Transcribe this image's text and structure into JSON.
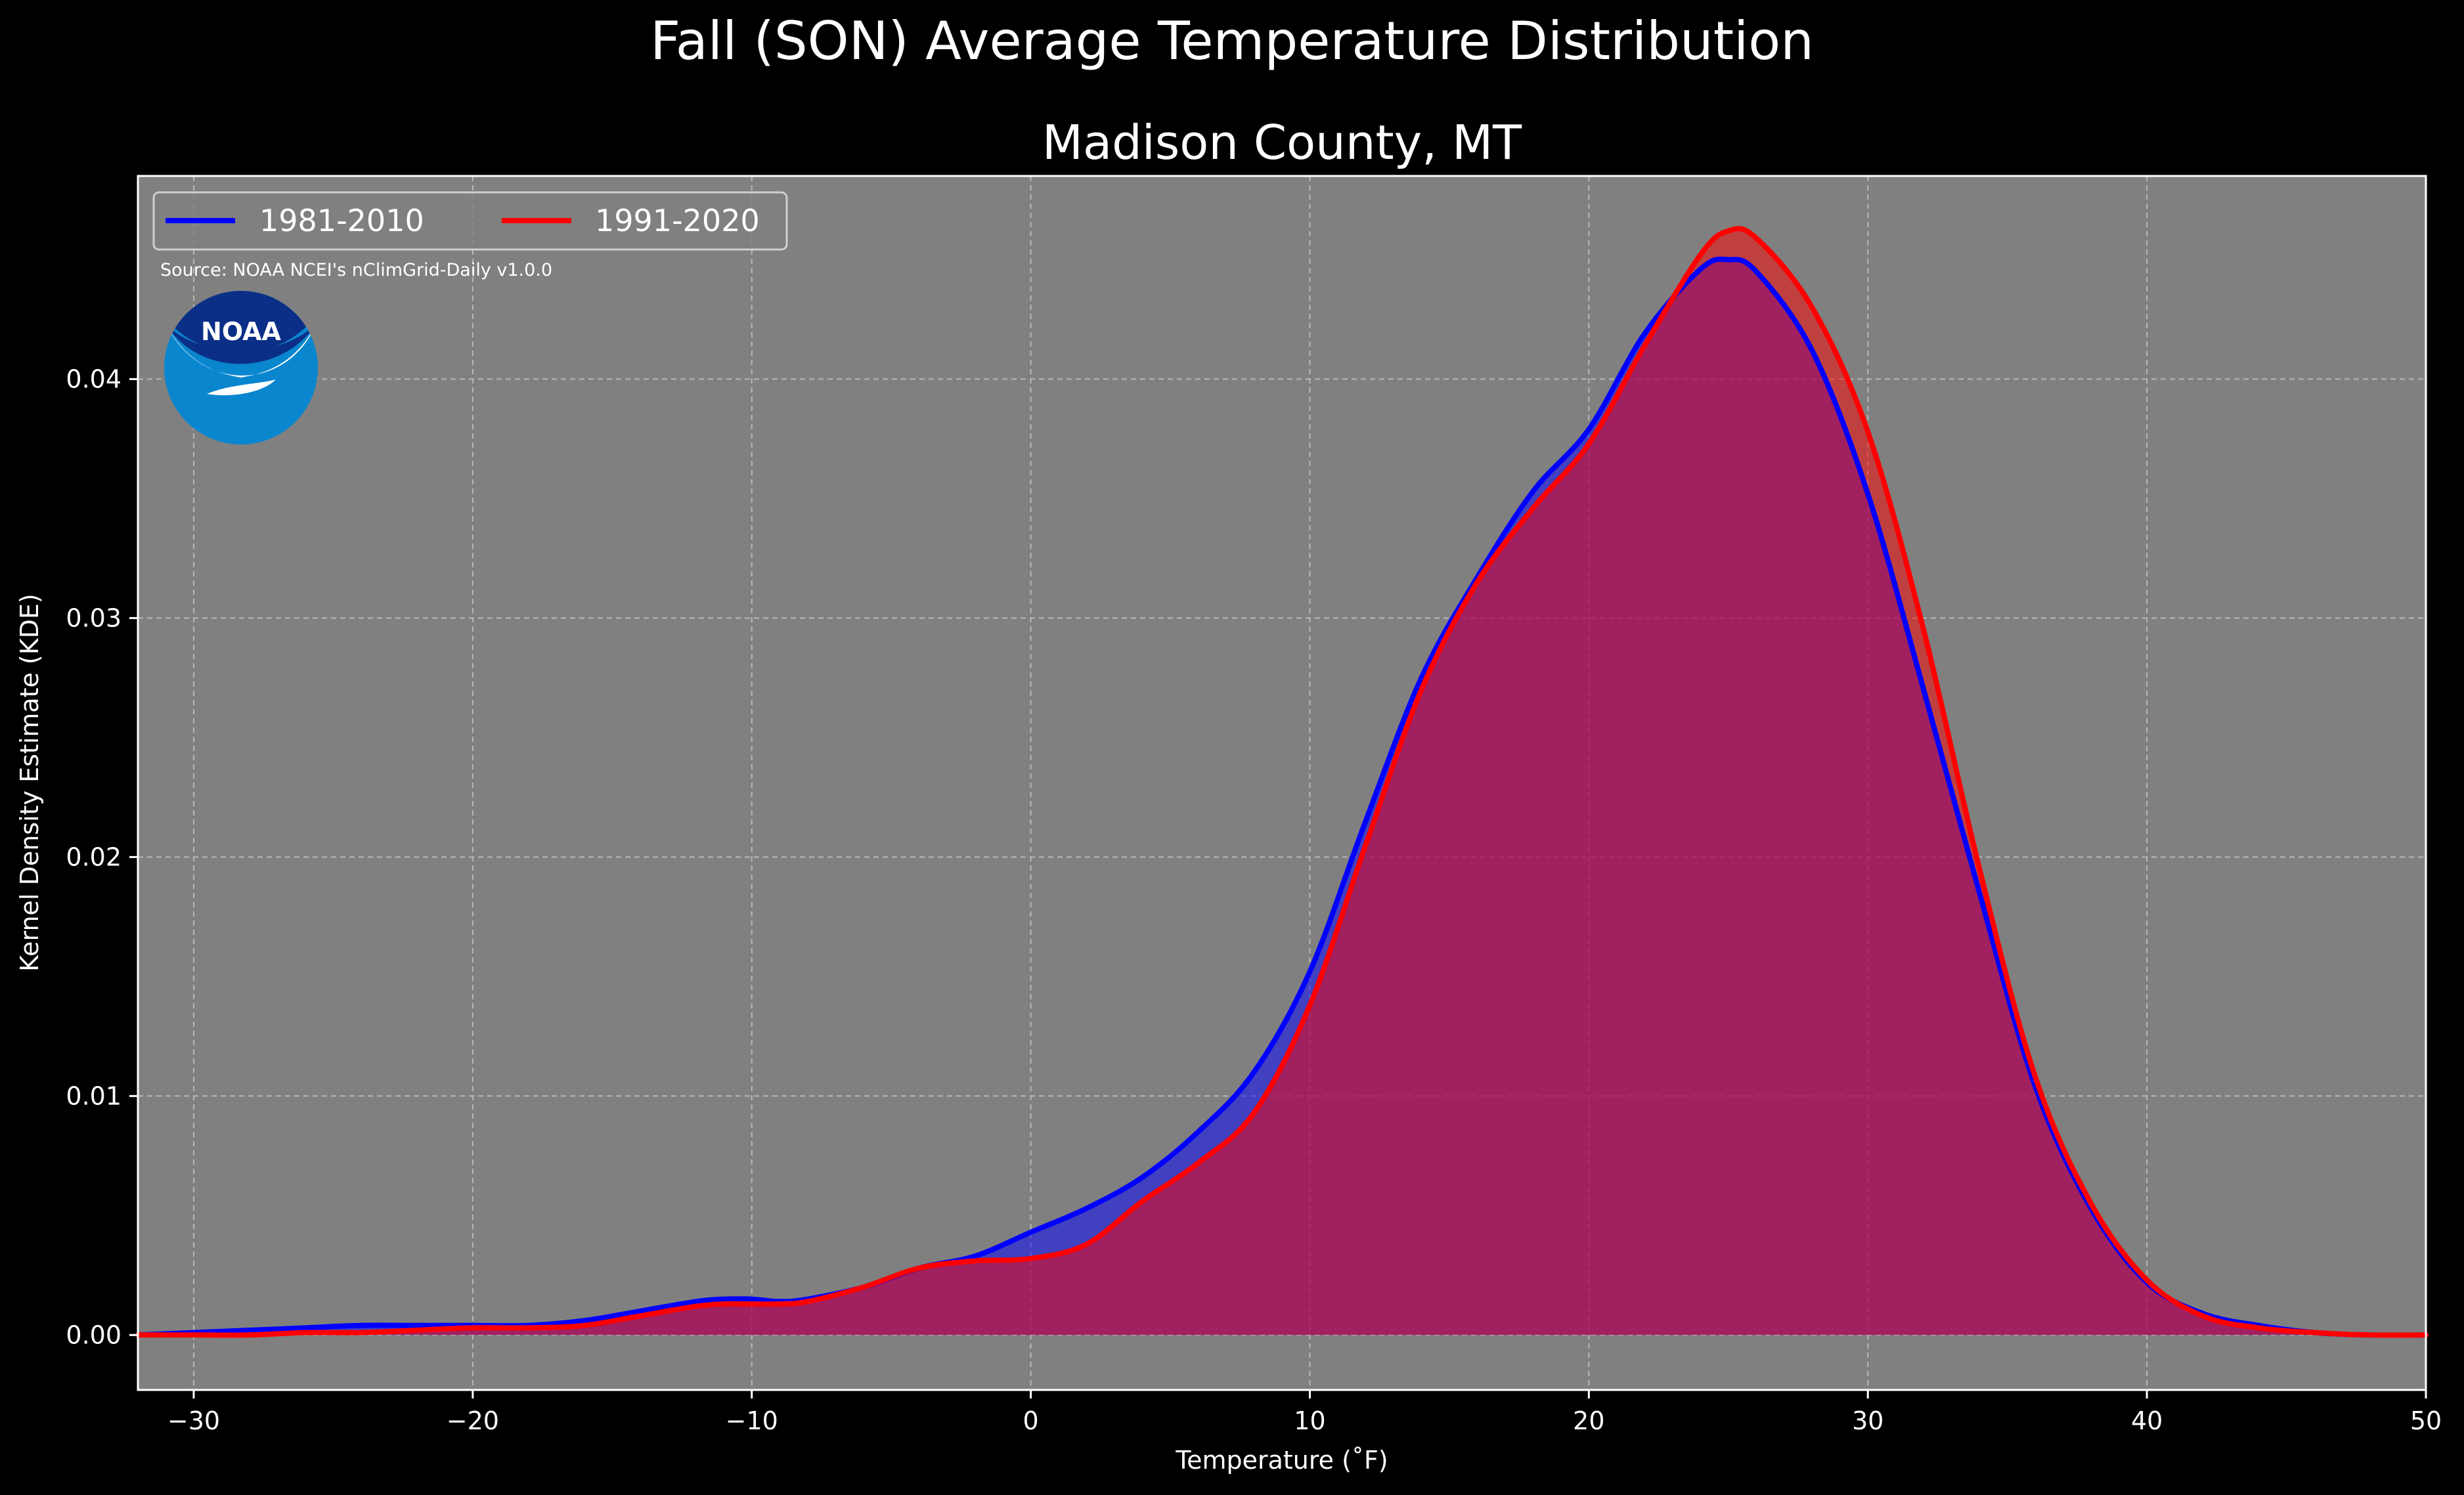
{
  "chart_data": {
    "type": "area",
    "suptitle": "Fall (SON) Average Temperature Distribution",
    "title": "Madison County, MT",
    "xlabel": "Temperature ($^\\circ$F)",
    "xlabel_display": "Temperature (˚F)",
    "ylabel": "Kernel Density Estimate (KDE)",
    "xlim": [
      -32,
      50
    ],
    "ylim": [
      -0.0023,
      0.0485
    ],
    "xticks": [
      -30,
      -20,
      -10,
      0,
      10,
      20,
      30,
      40,
      50
    ],
    "xtick_labels": [
      "−30",
      "−20",
      "−10",
      "0",
      "10",
      "20",
      "30",
      "40",
      "50"
    ],
    "yticks": [
      0.0,
      0.01,
      0.02,
      0.03,
      0.04
    ],
    "ytick_labels": [
      "0.00",
      "0.01",
      "0.02",
      "0.03",
      "0.04"
    ],
    "grid": true,
    "legend_position": "top-left",
    "source_note": "Source: NOAA NCEI's nClimGrid-Daily v1.0.0",
    "logo_text": "NOAA",
    "background_color": "#000000",
    "plot_background_color": "#808080",
    "series": [
      {
        "name": "1981-2010",
        "color": "#0000ff",
        "x": [
          -32,
          -30,
          -28,
          -26,
          -24,
          -22,
          -20,
          -18,
          -16,
          -14,
          -12,
          -11,
          -10,
          -9,
          -8,
          -6,
          -4,
          -2,
          0,
          2,
          4,
          6,
          8,
          10,
          12,
          14,
          16,
          18,
          20,
          22,
          24,
          25,
          26,
          28,
          30,
          32,
          34,
          36,
          38,
          40,
          42,
          44,
          46,
          48,
          50
        ],
        "y": [
          0.0,
          0.0001,
          0.0002,
          0.0003,
          0.0004,
          0.0004,
          0.0004,
          0.0004,
          0.0006,
          0.001,
          0.0014,
          0.0015,
          0.0015,
          0.0014,
          0.0015,
          0.002,
          0.0028,
          0.0033,
          0.0043,
          0.0053,
          0.0066,
          0.0085,
          0.011,
          0.0152,
          0.0215,
          0.0275,
          0.0317,
          0.0353,
          0.0379,
          0.0419,
          0.0446,
          0.045,
          0.0445,
          0.0412,
          0.0352,
          0.027,
          0.0185,
          0.0104,
          0.0053,
          0.0022,
          0.0009,
          0.0004,
          0.0001,
          0.0,
          0.0
        ]
      },
      {
        "name": "1991-2020",
        "color": "#ff0000",
        "x": [
          -32,
          -30,
          -28,
          -26,
          -24,
          -22,
          -20,
          -18,
          -16,
          -14,
          -12,
          -11,
          -10,
          -9,
          -8,
          -6,
          -4,
          -2,
          0,
          2,
          4,
          6,
          8,
          10,
          12,
          14,
          16,
          18,
          20,
          22,
          24,
          25,
          26,
          28,
          30,
          32,
          34,
          36,
          38,
          40,
          42,
          44,
          46,
          48,
          50
        ],
        "y": [
          0.0,
          0.0,
          0.0,
          0.0001,
          0.0001,
          0.0002,
          0.0003,
          0.0003,
          0.0004,
          0.0008,
          0.0012,
          0.0013,
          0.0013,
          0.0013,
          0.0014,
          0.002,
          0.0028,
          0.0031,
          0.0032,
          0.0038,
          0.0056,
          0.0072,
          0.0093,
          0.0138,
          0.0205,
          0.027,
          0.0315,
          0.0346,
          0.0373,
          0.0414,
          0.0452,
          0.0462,
          0.0459,
          0.043,
          0.0378,
          0.0295,
          0.0195,
          0.0108,
          0.0055,
          0.0023,
          0.0008,
          0.0003,
          0.0001,
          0.0,
          0.0
        ]
      }
    ]
  }
}
